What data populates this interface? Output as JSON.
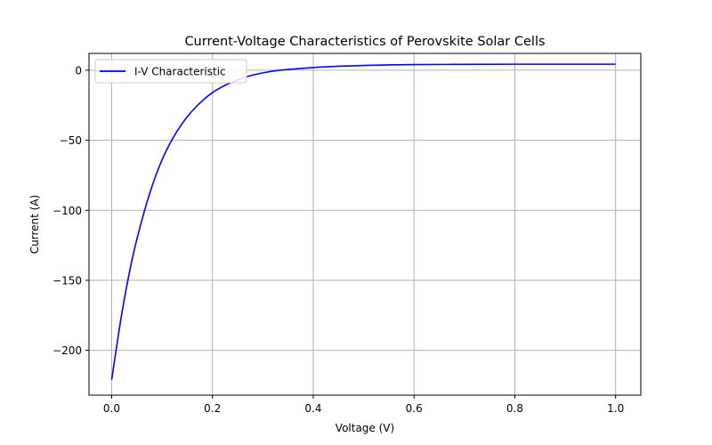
{
  "chart_data": {
    "type": "line",
    "title": "Current-Voltage Characteristics of Perovskite Solar Cells",
    "xlabel": "Voltage (V)",
    "ylabel": "Current (A)",
    "xlim": [
      -0.045,
      1.05
    ],
    "ylim": [
      -232,
      12
    ],
    "xticks": [
      0.0,
      0.2,
      0.4,
      0.6,
      0.8,
      1.0
    ],
    "xtick_labels": [
      "0.0",
      "0.2",
      "0.4",
      "0.6",
      "0.8",
      "1.0"
    ],
    "yticks": [
      0,
      -50,
      -100,
      -150,
      -200
    ],
    "ytick_labels": [
      "0",
      "−50",
      "−100",
      "−150",
      "−200"
    ],
    "grid": true,
    "legend_position": "top-left",
    "series": [
      {
        "name": "I-V Characteristic",
        "color": "#0000ff",
        "x": [
          0.0,
          0.02,
          0.04,
          0.06,
          0.08,
          0.1,
          0.12,
          0.14,
          0.16,
          0.18,
          0.2,
          0.22,
          0.24,
          0.26,
          0.28,
          0.3,
          0.33,
          0.36,
          0.4,
          0.45,
          0.5,
          0.55,
          0.6,
          0.7,
          0.8,
          0.9,
          1.0
        ],
        "y": [
          -221,
          -174,
          -136,
          -107,
          -83,
          -64,
          -49.5,
          -38,
          -29,
          -21.8,
          -16,
          -11.7,
          -8.3,
          -5.6,
          -3.5,
          -1.9,
          -0.2,
          0.8,
          1.9,
          2.8,
          3.4,
          3.8,
          4.0,
          4.2,
          4.3,
          4.3,
          4.3
        ]
      }
    ]
  }
}
